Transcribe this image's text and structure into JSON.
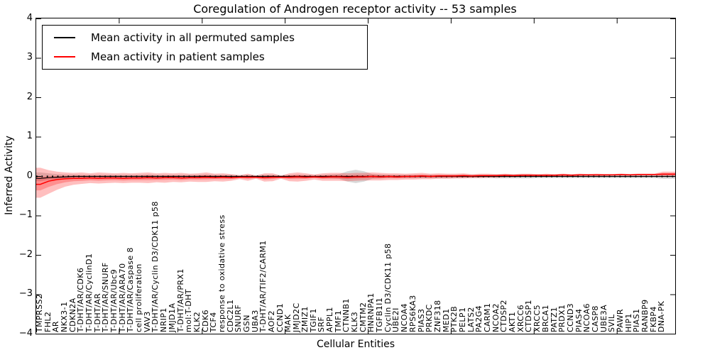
{
  "title": "Coregulation of Androgen receptor activity -- 53 samples",
  "axes": {
    "ylabel": "Inferred Activity",
    "xlabel": "Cellular Entities",
    "ytick_labels": [
      "4",
      "3",
      "2",
      "1",
      "0",
      "−1",
      "−2",
      "−3",
      "−4"
    ],
    "ytick_values": [
      4,
      3,
      2,
      1,
      0,
      -1,
      -2,
      -3,
      -4
    ],
    "xtick_units": [
      10,
      20,
      30,
      40,
      50,
      60,
      70
    ],
    "ylim": [
      -4,
      4
    ]
  },
  "legend": {
    "items": [
      {
        "label": "Mean activity in all permuted samples",
        "color": "#000000"
      },
      {
        "label": "Mean activity in patient samples",
        "color": "#ff0000"
      }
    ]
  },
  "colors": {
    "patient_line": "#ff0000",
    "permuted_line": "#000000",
    "patient_band": "#ff0000",
    "permuted_band": "#909090",
    "zero_line": "#000000",
    "axis": "#000000"
  },
  "chart_data": {
    "type": "line",
    "title": "Coregulation of Androgen receptor activity -- 53 samples",
    "xlabel": "Cellular Entities",
    "ylabel": "Inferred Activity",
    "ylim": [
      -4,
      4
    ],
    "legend_position": "upper left",
    "grid": false,
    "categories": [
      "TMPRSS2",
      "FHL2",
      "AR",
      "NKX3-1",
      "CDKN2A",
      "T-DHT/AR/CDK6",
      "T-DHT/AR/CyclinD1",
      "T-DHT/AR",
      "T-DHT/AR/SNURF",
      "T-DHT/AR/Ubc9",
      "T-DHT/AR/ARA70",
      "T-DHT/AR/Caspase 8",
      "cell proliferation",
      "VAV3",
      "T-DHT/AR/Cyclin D3/CDK11 p58",
      "NRIP1",
      "JMJD1A",
      "T-DHT/AR/PRX1",
      "mol:T-DHT",
      "KLK2",
      "CDK6",
      "TCF4",
      "response to oxidative stress",
      "CDC2L1",
      "SNURF",
      "GSN",
      "UBA3",
      "T-DHT/AR/TIF2/CARM1",
      "AOF2",
      "CCND1",
      "MAK",
      "JMJD2C",
      "ZMIZ1",
      "TGIF1",
      "SRF",
      "APPL1",
      "TMF1",
      "CTNNB1",
      "KLK3",
      "CMTM2",
      "HNRNPA1",
      "TGFB1I1",
      "Cyclin D3/CDK11 p58",
      "UBE2I",
      "NCOA4",
      "RPS6KA3",
      "PIAS3",
      "PRKDC",
      "ZNF318",
      "MED1",
      "PTK2B",
      "PELP1",
      "LATS2",
      "PA2G4",
      "CARM1",
      "NCOA2",
      "CTDSP2",
      "AKT1",
      "XRCC6",
      "CTDSP1",
      "XRCC5",
      "BRCA1",
      "PATZ1",
      "PRDX1",
      "CCND3",
      "PIAS4",
      "NCOA6",
      "CASP8",
      "UBE3A",
      "SVIL",
      "PAWR",
      "HIP1",
      "PIAS1",
      "RANBP9",
      "FKBP4",
      "DNA-PK"
    ],
    "series": [
      {
        "name": "Mean activity in all permuted samples",
        "color": "#000000",
        "values": [
          -0.05,
          -0.03,
          -0.02,
          -0.01,
          0,
          0,
          0,
          0,
          0,
          0,
          0,
          0,
          0,
          0,
          0,
          0,
          0,
          0,
          0,
          0,
          0,
          0,
          0,
          0,
          0,
          0,
          0,
          0,
          0,
          0,
          0,
          0,
          0,
          0,
          0,
          0,
          0,
          0,
          0,
          0,
          0,
          0,
          0,
          0,
          0,
          0,
          0,
          0,
          0,
          0,
          0,
          0,
          0,
          0,
          0,
          0,
          0,
          0,
          0,
          0,
          0,
          0,
          0,
          0,
          0,
          0,
          0,
          0,
          0,
          0,
          0,
          0,
          0,
          0,
          0,
          0
        ],
        "band_upper": [
          0.1,
          0.08,
          0.06,
          0.05,
          0.05,
          0.04,
          0.04,
          0.04,
          0.04,
          0.04,
          0.04,
          0.04,
          0.04,
          0.05,
          0.04,
          0.04,
          0.04,
          0.04,
          0.04,
          0.04,
          0.05,
          0.04,
          0.04,
          0.04,
          0.03,
          0.04,
          0.03,
          0.04,
          0.04,
          0.03,
          0.04,
          0.04,
          0.04,
          0.03,
          0.04,
          0.05,
          0.06,
          0.13,
          0.17,
          0.13,
          0.06,
          0.05,
          0.04,
          0.04,
          0.04,
          0.04,
          0.04,
          0.04,
          0.04,
          0.04,
          0.04,
          0.04,
          0.04,
          0.04,
          0.04,
          0.05,
          0.05,
          0.05,
          0.05,
          0.05,
          0.04,
          0.04,
          0.04,
          0.04,
          0.04,
          0.04,
          0.04,
          0.04,
          0.04,
          0.04,
          0.04,
          0.04,
          0.04,
          0.04,
          0.04,
          0.06
        ],
        "band_lower": [
          -0.12,
          -0.09,
          -0.07,
          -0.06,
          -0.05,
          -0.04,
          -0.04,
          -0.04,
          -0.04,
          -0.04,
          -0.04,
          -0.04,
          -0.04,
          -0.05,
          -0.04,
          -0.04,
          -0.04,
          -0.04,
          -0.04,
          -0.04,
          -0.05,
          -0.04,
          -0.04,
          -0.04,
          -0.03,
          -0.04,
          -0.03,
          -0.04,
          -0.04,
          -0.03,
          -0.04,
          -0.04,
          -0.04,
          -0.03,
          -0.04,
          -0.05,
          -0.06,
          -0.13,
          -0.17,
          -0.13,
          -0.06,
          -0.05,
          -0.04,
          -0.04,
          -0.04,
          -0.04,
          -0.04,
          -0.04,
          -0.04,
          -0.04,
          -0.04,
          -0.04,
          -0.04,
          -0.04,
          -0.04,
          -0.05,
          -0.05,
          -0.05,
          -0.05,
          -0.05,
          -0.04,
          -0.04,
          -0.04,
          -0.04,
          -0.04,
          -0.04,
          -0.04,
          -0.04,
          -0.04,
          -0.04,
          -0.04,
          -0.04,
          -0.04,
          -0.04,
          -0.04,
          -0.06
        ]
      },
      {
        "name": "Mean activity in patient samples",
        "color": "#ff0000",
        "values": [
          -0.2,
          -0.12,
          -0.08,
          -0.06,
          -0.05,
          -0.05,
          -0.04,
          -0.05,
          -0.04,
          -0.04,
          -0.05,
          -0.04,
          -0.04,
          -0.03,
          -0.04,
          -0.03,
          -0.03,
          -0.04,
          -0.03,
          -0.03,
          -0.02,
          -0.03,
          -0.02,
          -0.03,
          -0.02,
          -0.02,
          -0.02,
          -0.03,
          -0.02,
          -0.02,
          -0.02,
          -0.01,
          -0.02,
          -0.01,
          -0.02,
          -0.01,
          -0.01,
          -0.02,
          -0.01,
          -0.01,
          0,
          -0.01,
          0,
          -0.01,
          0,
          0,
          0.01,
          0,
          0.01,
          0.01,
          0.01,
          0.02,
          0.01,
          0.02,
          0.02,
          0.02,
          0.03,
          0.02,
          0.03,
          0.03,
          0.03,
          0.03,
          0.03,
          0.04,
          0.03,
          0.04,
          0.04,
          0.04,
          0.04,
          0.04,
          0.05,
          0.04,
          0.05,
          0.05,
          0.05,
          0.06
        ],
        "band_upper": [
          0.22,
          0.16,
          0.12,
          0.1,
          0.09,
          0.1,
          0.08,
          0.1,
          0.09,
          0.08,
          0.09,
          0.08,
          0.09,
          0.1,
          0.08,
          0.09,
          0.08,
          0.09,
          0.07,
          0.08,
          0.1,
          0.07,
          0.08,
          0.06,
          0.03,
          0.07,
          0.02,
          0.08,
          0.08,
          0.02,
          0.08,
          0.1,
          0.08,
          0.05,
          0.08,
          0.09,
          0.09,
          0.08,
          0.09,
          0.09,
          0.1,
          0.09,
          0.08,
          0.08,
          0.07,
          0.08,
          0.09,
          0.07,
          0.08,
          0.07,
          0.07,
          0.08,
          0.06,
          0.07,
          0.07,
          0.06,
          0.07,
          0.06,
          0.07,
          0.07,
          0.06,
          0.07,
          0.06,
          0.07,
          0.06,
          0.07,
          0.06,
          0.07,
          0.06,
          0.06,
          0.07,
          0.06,
          0.07,
          0.07,
          0.07,
          0.12
        ],
        "band_lower": [
          -0.54,
          -0.44,
          -0.34,
          -0.26,
          -0.21,
          -0.19,
          -0.17,
          -0.18,
          -0.17,
          -0.16,
          -0.17,
          -0.16,
          -0.16,
          -0.17,
          -0.15,
          -0.16,
          -0.14,
          -0.15,
          -0.13,
          -0.14,
          -0.14,
          -0.12,
          -0.13,
          -0.11,
          -0.07,
          -0.11,
          -0.06,
          -0.13,
          -0.12,
          -0.06,
          -0.12,
          -0.13,
          -0.11,
          -0.08,
          -0.11,
          -0.11,
          -0.11,
          -0.12,
          -0.11,
          -0.1,
          -0.1,
          -0.1,
          -0.09,
          -0.09,
          -0.08,
          -0.08,
          -0.07,
          -0.07,
          -0.06,
          -0.06,
          -0.05,
          -0.05,
          -0.04,
          -0.04,
          -0.03,
          -0.03,
          -0.02,
          -0.02,
          -0.01,
          -0.01,
          -0.01,
          -0.01,
          0,
          0,
          0,
          0.01,
          0.01,
          0.01,
          0.01,
          0.02,
          0.02,
          0.02,
          0.02,
          0.02,
          0.02,
          0
        ]
      }
    ],
    "zero_reference_line": {
      "y": 0,
      "style": "dotted",
      "color": "#000000"
    }
  }
}
